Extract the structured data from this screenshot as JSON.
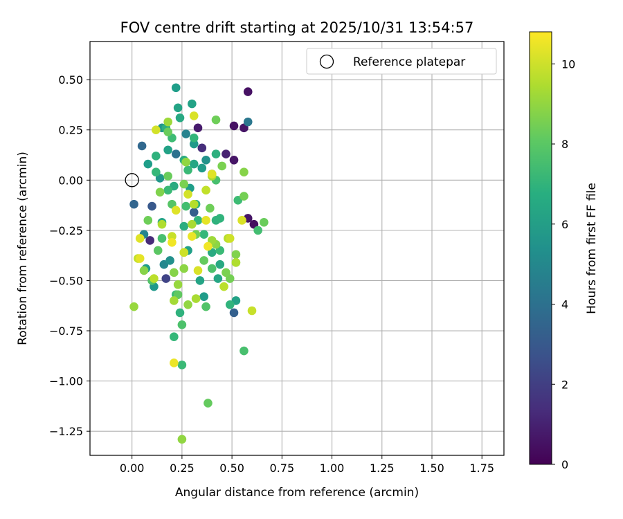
{
  "chart_data": {
    "type": "scatter",
    "title": "FOV centre drift starting at 2025/10/31 13:54:57",
    "xlabel": "Angular distance from reference (arcmin)",
    "ylabel": "Rotation from reference (arcmin)",
    "xlim": [
      -0.21,
      1.86
    ],
    "ylim": [
      -1.37,
      0.69
    ],
    "grid": true,
    "x_ticks": [
      0.0,
      0.25,
      0.5,
      0.75,
      1.0,
      1.25,
      1.5,
      1.75
    ],
    "x_tick_labels": [
      "0.00",
      "0.25",
      "0.50",
      "0.75",
      "1.00",
      "1.25",
      "1.50",
      "1.75"
    ],
    "y_ticks": [
      0.5,
      0.25,
      0.0,
      -0.25,
      -0.5,
      -0.75,
      -1.0,
      -1.25
    ],
    "y_tick_labels": [
      "0.50",
      "0.25",
      "0.00",
      "−0.25",
      "−0.50",
      "−0.75",
      "−1.00",
      "−1.25"
    ],
    "legend": {
      "label": "Reference platepar",
      "location": "top-right",
      "marker": "open-circle"
    },
    "reference_point": {
      "x": 0.0,
      "y": 0.0
    },
    "colorbar": {
      "label": "Hours from first FF file",
      "colormap": "viridis",
      "range": [
        0,
        10.8
      ],
      "ticks": [
        0,
        2,
        4,
        6,
        8,
        10
      ],
      "tick_labels": [
        "0",
        "2",
        "4",
        "6",
        "8",
        "10"
      ]
    },
    "points": [
      {
        "x": 0.58,
        "y": 0.44,
        "h": 0.5
      },
      {
        "x": 0.51,
        "y": 0.27,
        "h": 0.5
      },
      {
        "x": 0.56,
        "y": 0.26,
        "h": 0.6
      },
      {
        "x": 0.51,
        "y": 0.1,
        "h": 0.6
      },
      {
        "x": 0.47,
        "y": 0.13,
        "h": 1.0
      },
      {
        "x": 0.61,
        "y": -0.22,
        "h": 0.4
      },
      {
        "x": 0.58,
        "y": -0.19,
        "h": 0.6
      },
      {
        "x": 0.33,
        "y": 0.26,
        "h": 0.8
      },
      {
        "x": 0.35,
        "y": 0.16,
        "h": 1.4
      },
      {
        "x": 0.09,
        "y": -0.3,
        "h": 1.3
      },
      {
        "x": 0.17,
        "y": -0.49,
        "h": 2.2
      },
      {
        "x": 0.4,
        "y": 0.03,
        "h": 1.6
      },
      {
        "x": 0.58,
        "y": 0.29,
        "h": 4.3
      },
      {
        "x": 0.05,
        "y": 0.17,
        "h": 3.6
      },
      {
        "x": 0.01,
        "y": -0.12,
        "h": 3.5
      },
      {
        "x": 0.51,
        "y": -0.66,
        "h": 3.3
      },
      {
        "x": 0.22,
        "y": 0.13,
        "h": 4.0
      },
      {
        "x": 0.27,
        "y": 0.23,
        "h": 4.8
      },
      {
        "x": 0.1,
        "y": -0.13,
        "h": 3.0
      },
      {
        "x": 0.31,
        "y": -0.16,
        "h": 3.2
      },
      {
        "x": 0.22,
        "y": 0.46,
        "h": 6.0
      },
      {
        "x": 0.3,
        "y": 0.38,
        "h": 6.2
      },
      {
        "x": 0.23,
        "y": 0.36,
        "h": 6.3
      },
      {
        "x": 0.24,
        "y": 0.31,
        "h": 6.5
      },
      {
        "x": 0.15,
        "y": 0.26,
        "h": 5.6
      },
      {
        "x": 0.17,
        "y": 0.26,
        "h": 6.8
      },
      {
        "x": 0.31,
        "y": 0.18,
        "h": 5.8
      },
      {
        "x": 0.42,
        "y": 0.13,
        "h": 6.8
      },
      {
        "x": 0.37,
        "y": 0.1,
        "h": 5.5
      },
      {
        "x": 0.26,
        "y": 0.1,
        "h": 6.6
      },
      {
        "x": 0.18,
        "y": 0.15,
        "h": 6.2
      },
      {
        "x": 0.08,
        "y": 0.08,
        "h": 6.0
      },
      {
        "x": 0.12,
        "y": 0.12,
        "h": 6.9
      },
      {
        "x": 0.31,
        "y": 0.08,
        "h": 6.4
      },
      {
        "x": 0.35,
        "y": 0.06,
        "h": 5.9
      },
      {
        "x": 0.14,
        "y": 0.01,
        "h": 5.7
      },
      {
        "x": 0.21,
        "y": -0.03,
        "h": 6.6
      },
      {
        "x": 0.06,
        "y": -0.27,
        "h": 4.9
      },
      {
        "x": 0.16,
        "y": -0.42,
        "h": 5.0
      },
      {
        "x": 0.19,
        "y": -0.4,
        "h": 5.4
      },
      {
        "x": 0.07,
        "y": -0.44,
        "h": 6.0
      },
      {
        "x": 0.11,
        "y": -0.53,
        "h": 5.8
      },
      {
        "x": 0.28,
        "y": -0.35,
        "h": 6.1
      },
      {
        "x": 0.34,
        "y": -0.5,
        "h": 6.3
      },
      {
        "x": 0.36,
        "y": -0.58,
        "h": 5.9
      },
      {
        "x": 0.43,
        "y": -0.49,
        "h": 6.4
      },
      {
        "x": 0.44,
        "y": -0.42,
        "h": 6.5
      },
      {
        "x": 0.52,
        "y": -0.6,
        "h": 6.2
      },
      {
        "x": 0.32,
        "y": -0.12,
        "h": 6.8
      },
      {
        "x": 0.26,
        "y": -0.23,
        "h": 6.7
      },
      {
        "x": 0.42,
        "y": -0.2,
        "h": 6.9
      },
      {
        "x": 0.15,
        "y": -0.21,
        "h": 6.3
      },
      {
        "x": 0.29,
        "y": -0.04,
        "h": 6.0
      },
      {
        "x": 0.44,
        "y": -0.19,
        "h": 7.0
      },
      {
        "x": 0.24,
        "y": -0.66,
        "h": 6.9
      },
      {
        "x": 0.4,
        "y": -0.36,
        "h": 6.6
      },
      {
        "x": 0.2,
        "y": 0.21,
        "h": 7.4
      },
      {
        "x": 0.12,
        "y": 0.04,
        "h": 7.2
      },
      {
        "x": 0.18,
        "y": -0.05,
        "h": 7.3
      },
      {
        "x": 0.27,
        "y": -0.13,
        "h": 7.5
      },
      {
        "x": 0.15,
        "y": -0.29,
        "h": 7.6
      },
      {
        "x": 0.36,
        "y": -0.27,
        "h": 7.2
      },
      {
        "x": 0.22,
        "y": -0.57,
        "h": 7.4
      },
      {
        "x": 0.4,
        "y": -0.44,
        "h": 7.7
      },
      {
        "x": 0.44,
        "y": -0.35,
        "h": 7.3
      },
      {
        "x": 0.1,
        "y": -0.5,
        "h": 7.8
      },
      {
        "x": 0.31,
        "y": 0.21,
        "h": 7.1
      },
      {
        "x": 0.42,
        "y": 0.0,
        "h": 7.6
      },
      {
        "x": 0.53,
        "y": -0.1,
        "h": 7.4
      },
      {
        "x": 0.63,
        "y": -0.25,
        "h": 7.5
      },
      {
        "x": 0.56,
        "y": -0.85,
        "h": 7.6
      },
      {
        "x": 0.21,
        "y": -0.78,
        "h": 7.2
      },
      {
        "x": 0.25,
        "y": -0.92,
        "h": 7.3
      },
      {
        "x": 0.25,
        "y": -0.72,
        "h": 7.7
      },
      {
        "x": 0.37,
        "y": -0.63,
        "h": 7.8
      },
      {
        "x": 0.49,
        "y": -0.62,
        "h": 7.0
      },
      {
        "x": 0.2,
        "y": -0.12,
        "h": 7.9
      },
      {
        "x": 0.33,
        "y": -0.2,
        "h": 7.1
      },
      {
        "x": 0.28,
        "y": 0.05,
        "h": 7.3
      },
      {
        "x": 0.18,
        "y": 0.24,
        "h": 8.3
      },
      {
        "x": 0.42,
        "y": 0.3,
        "h": 8.4
      },
      {
        "x": 0.45,
        "y": 0.07,
        "h": 8.6
      },
      {
        "x": 0.56,
        "y": 0.04,
        "h": 8.8
      },
      {
        "x": 0.56,
        "y": -0.08,
        "h": 8.5
      },
      {
        "x": 0.66,
        "y": -0.21,
        "h": 8.3
      },
      {
        "x": 0.52,
        "y": -0.41,
        "h": 8.7
      },
      {
        "x": 0.49,
        "y": -0.49,
        "h": 8.5
      },
      {
        "x": 0.38,
        "y": -1.11,
        "h": 8.2
      },
      {
        "x": 0.23,
        "y": -0.57,
        "h": 8.1
      },
      {
        "x": 0.26,
        "y": -0.44,
        "h": 8.9
      },
      {
        "x": 0.06,
        "y": -0.45,
        "h": 8.8
      },
      {
        "x": 0.08,
        "y": -0.2,
        "h": 8.4
      },
      {
        "x": 0.14,
        "y": -0.06,
        "h": 8.7
      },
      {
        "x": 0.18,
        "y": 0.02,
        "h": 8.3
      },
      {
        "x": 0.26,
        "y": -0.02,
        "h": 8.6
      },
      {
        "x": 0.32,
        "y": -0.27,
        "h": 8.5
      },
      {
        "x": 0.42,
        "y": -0.32,
        "h": 8.9
      },
      {
        "x": 0.39,
        "y": -0.14,
        "h": 8.4
      },
      {
        "x": 0.36,
        "y": -0.4,
        "h": 8.2
      },
      {
        "x": 0.21,
        "y": -0.46,
        "h": 8.8
      },
      {
        "x": 0.13,
        "y": -0.35,
        "h": 8.0
      },
      {
        "x": 0.47,
        "y": -0.46,
        "h": 8.6
      },
      {
        "x": 0.52,
        "y": -0.37,
        "h": 8.7
      },
      {
        "x": 0.01,
        "y": -0.63,
        "h": 9.1
      },
      {
        "x": 0.21,
        "y": -0.6,
        "h": 9.3
      },
      {
        "x": 0.28,
        "y": -0.62,
        "h": 9.0
      },
      {
        "x": 0.32,
        "y": -0.59,
        "h": 9.4
      },
      {
        "x": 0.4,
        "y": -0.3,
        "h": 9.2
      },
      {
        "x": 0.48,
        "y": -0.29,
        "h": 9.6
      },
      {
        "x": 0.52,
        "y": -0.41,
        "h": 9.5
      },
      {
        "x": 0.03,
        "y": -0.39,
        "h": 9.8
      },
      {
        "x": 0.11,
        "y": -0.49,
        "h": 9.7
      },
      {
        "x": 0.15,
        "y": -0.22,
        "h": 9.5
      },
      {
        "x": 0.2,
        "y": -0.28,
        "h": 9.9
      },
      {
        "x": 0.26,
        "y": -0.36,
        "h": 9.3
      },
      {
        "x": 0.31,
        "y": -0.12,
        "h": 9.6
      },
      {
        "x": 0.37,
        "y": -0.05,
        "h": 9.8
      },
      {
        "x": 0.4,
        "y": 0.02,
        "h": 9.4
      },
      {
        "x": 0.27,
        "y": 0.09,
        "h": 9.0
      },
      {
        "x": 0.18,
        "y": 0.29,
        "h": 9.2
      },
      {
        "x": 0.6,
        "y": -0.65,
        "h": 9.9
      },
      {
        "x": 0.46,
        "y": -0.53,
        "h": 9.7
      },
      {
        "x": 0.23,
        "y": -0.52,
        "h": 9.1
      },
      {
        "x": 0.3,
        "y": -0.22,
        "h": 9.4
      },
      {
        "x": 0.31,
        "y": 0.32,
        "h": 10.2
      },
      {
        "x": 0.12,
        "y": 0.25,
        "h": 10.1
      },
      {
        "x": 0.4,
        "y": 0.03,
        "h": 10.3
      },
      {
        "x": 0.37,
        "y": -0.2,
        "h": 10.4
      },
      {
        "x": 0.55,
        "y": -0.2,
        "h": 10.2
      },
      {
        "x": 0.3,
        "y": -0.28,
        "h": 10.5
      },
      {
        "x": 0.26,
        "y": -0.36,
        "h": 10.0
      },
      {
        "x": 0.38,
        "y": -0.33,
        "h": 10.6
      },
      {
        "x": 0.04,
        "y": -0.29,
        "h": 10.3
      },
      {
        "x": 0.04,
        "y": -0.39,
        "h": 10.4
      },
      {
        "x": 0.21,
        "y": -0.91,
        "h": 10.5
      },
      {
        "x": 0.28,
        "y": -0.07,
        "h": 10.1
      },
      {
        "x": 0.33,
        "y": -0.45,
        "h": 10.2
      },
      {
        "x": 0.49,
        "y": -0.29,
        "h": 10.0
      },
      {
        "x": 0.2,
        "y": -0.31,
        "h": 10.6
      },
      {
        "x": 0.22,
        "y": -0.15,
        "h": 10.3
      },
      {
        "x": 0.25,
        "y": -1.29,
        "h": 9.0
      }
    ]
  }
}
